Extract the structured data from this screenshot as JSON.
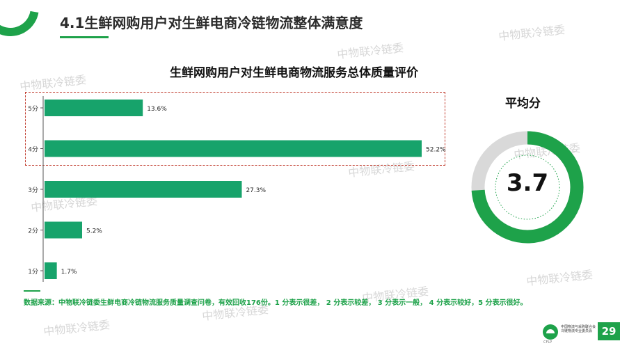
{
  "slide": {
    "title": "4.1生鲜网购用户对生鲜电商冷链物流整体满意度",
    "page_number": "29"
  },
  "watermarks": [
    "中物联冷链委",
    "中物联冷链委",
    "中物联冷链委",
    "中物联冷链委",
    "中物联冷链委",
    "中物联冷链委",
    "中物联冷链委",
    "中物联冷链委",
    "中物联冷链委"
  ],
  "chart_data": [
    {
      "type": "bar",
      "orientation": "horizontal",
      "title": "生鲜网购用户对生鲜电商物流服务总体质量评价",
      "categories": [
        "5分",
        "4分",
        "3分",
        "2分",
        "1分"
      ],
      "values": [
        13.6,
        52.2,
        27.3,
        5.2,
        1.7
      ],
      "value_labels": [
        "13.6%",
        "52.2%",
        "27.3%",
        "5.2%",
        "1.7%"
      ],
      "value_unit": "%",
      "xlim": [
        0,
        60
      ],
      "grid": false,
      "bar_color": "#17a36b",
      "highlight_categories": [
        "5分",
        "4分"
      ],
      "highlight_border_color": "#c0392b"
    },
    {
      "type": "pie",
      "style": "donut",
      "title": "平均分",
      "center_label": "3.7",
      "value": 3.7,
      "max": 5,
      "fill_color": "#1ea24a",
      "track_color": "#d9d9d9"
    }
  ],
  "source_note": "数据来源：中物联冷链委生鲜电商冷链物流服务质量调查问卷，有效回收176份。1 分表示很差， 2 分表示较差， 3 分表示一般， 4 分表示较好，5 分表示很好。",
  "footer": {
    "org_line1": "中国物流与采购联合会",
    "org_line2": "冷链物流专业委员会",
    "org_en": "CFLP"
  }
}
